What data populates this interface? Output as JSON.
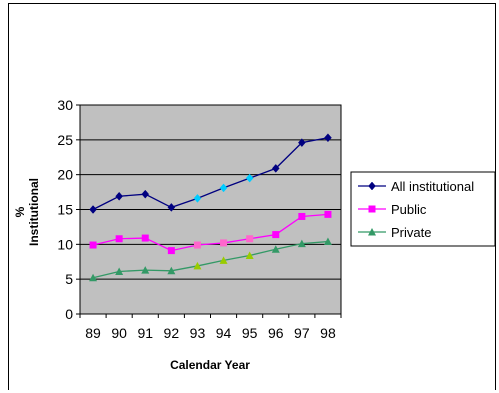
{
  "chart_data": {
    "type": "line",
    "title": "",
    "xlabel": "Calendar Year",
    "ylabel": "% Institutional",
    "ylabel_lines": [
      "%",
      "Institutional"
    ],
    "categories": [
      "89",
      "90",
      "91",
      "92",
      "93",
      "94",
      "95",
      "96",
      "97",
      "98"
    ],
    "ylim": [
      0,
      30
    ],
    "yticks": [
      0,
      5,
      10,
      15,
      20,
      25,
      30
    ],
    "grid": true,
    "plot_background": "#c0c0c0",
    "legend_position": "right",
    "series": [
      {
        "name": "All institutional",
        "color": "#000080",
        "marker": "diamond",
        "values": [
          15.0,
          16.9,
          17.2,
          15.3,
          16.6,
          18.1,
          19.5,
          20.9,
          24.6,
          25.3
        ],
        "marker_colors": [
          "#000080",
          "#000080",
          "#000080",
          "#000080",
          "#00ccff",
          "#00ccff",
          "#00ccff",
          "#000080",
          "#000080",
          "#000080"
        ]
      },
      {
        "name": "Public",
        "color": "#ff00ff",
        "marker": "square",
        "values": [
          9.9,
          10.8,
          10.9,
          9.1,
          9.9,
          10.2,
          10.8,
          11.4,
          14.0,
          14.3
        ],
        "marker_colors": [
          "#ff00ff",
          "#ff00ff",
          "#ff00ff",
          "#ff00ff",
          "#ff66cc",
          "#ff66cc",
          "#ff66cc",
          "#ff00ff",
          "#ff00ff",
          "#ff00ff"
        ]
      },
      {
        "name": "Private",
        "color": "#339966",
        "marker": "triangle",
        "values": [
          5.2,
          6.1,
          6.3,
          6.2,
          6.9,
          7.7,
          8.4,
          9.3,
          10.1,
          10.4
        ],
        "marker_colors": [
          "#339966",
          "#339966",
          "#339966",
          "#339966",
          "#99cc00",
          "#99cc00",
          "#99cc00",
          "#339966",
          "#339966",
          "#339966"
        ]
      }
    ]
  }
}
